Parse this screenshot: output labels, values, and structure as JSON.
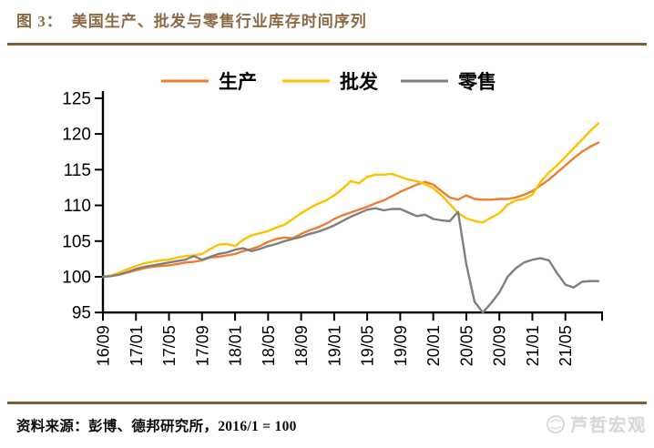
{
  "header": {
    "figure_label": "图 3：",
    "title": "美国生产、批发与零售行业库存时间序列"
  },
  "footer": {
    "source": "资料来源：彭博、德邦研究所，2016/1 = 100",
    "watermark_text": "芦哲宏观"
  },
  "colors": {
    "title_brown": "#8A6A44",
    "rule_brown": "#7E5F38",
    "axis_black": "#000000",
    "production_orange": "#ED7D31",
    "wholesale_yellow": "#FFC000",
    "retail_gray": "#7F7F7F"
  },
  "chart_data": {
    "type": "line",
    "title": "美国生产、批发与零售行业库存时间序列",
    "xlabel": "",
    "ylabel": "",
    "index_base": "2016/1 = 100",
    "legend_position": "top",
    "grid": false,
    "ylim": [
      95,
      125
    ],
    "yticks": [
      95,
      100,
      105,
      110,
      115,
      120,
      125
    ],
    "n_points": 61,
    "x_start": "16/09",
    "x_end": "21/09",
    "x_tick_months": [
      0,
      4,
      8,
      12,
      16,
      20,
      24,
      28,
      32,
      36,
      40,
      44,
      48,
      52,
      56
    ],
    "x_tick_labels": [
      "16/09",
      "17/01",
      "17/05",
      "17/09",
      "18/01",
      "18/05",
      "18/09",
      "19/01",
      "19/05",
      "19/09",
      "20/01",
      "20/05",
      "20/09",
      "21/01",
      "21/05"
    ],
    "series": [
      {
        "name": "生产",
        "color": "#ED7D31",
        "values": [
          100.0,
          100.1,
          100.3,
          100.6,
          100.9,
          101.2,
          101.4,
          101.5,
          101.6,
          101.8,
          102.0,
          102.1,
          102.3,
          102.7,
          102.8,
          103.0,
          103.2,
          103.6,
          103.9,
          104.3,
          104.9,
          105.3,
          105.5,
          105.4,
          106.0,
          106.5,
          106.9,
          107.4,
          108.1,
          108.6,
          109.0,
          109.4,
          109.8,
          110.3,
          110.7,
          111.3,
          111.9,
          112.4,
          112.9,
          113.3,
          112.9,
          112.0,
          111.1,
          110.8,
          111.4,
          110.9,
          110.8,
          110.8,
          110.9,
          110.9,
          111.1,
          111.5,
          112.0,
          112.8,
          113.6,
          114.6,
          115.6,
          116.6,
          117.5,
          118.2,
          118.8
        ]
      },
      {
        "name": "批发",
        "color": "#FFC000",
        "values": [
          100.0,
          100.2,
          100.6,
          101.1,
          101.5,
          101.9,
          102.1,
          102.3,
          102.4,
          102.7,
          102.9,
          103.0,
          103.2,
          103.9,
          104.5,
          104.6,
          104.3,
          105.2,
          105.8,
          106.1,
          106.4,
          106.9,
          107.3,
          108.1,
          108.9,
          109.6,
          110.2,
          110.7,
          111.4,
          112.3,
          113.4,
          113.1,
          114.0,
          114.3,
          114.3,
          114.4,
          114.0,
          113.6,
          113.4,
          113.0,
          112.4,
          111.4,
          110.2,
          108.9,
          108.2,
          107.8,
          107.6,
          108.3,
          108.9,
          110.1,
          110.7,
          110.9,
          111.5,
          113.3,
          114.6,
          115.6,
          116.8,
          118.0,
          119.2,
          120.4,
          121.5
        ]
      },
      {
        "name": "零售",
        "color": "#7F7F7F",
        "values": [
          100.0,
          100.1,
          100.3,
          100.7,
          101.1,
          101.4,
          101.6,
          101.8,
          102.0,
          102.2,
          102.4,
          102.9,
          102.4,
          102.8,
          103.2,
          103.4,
          103.8,
          104.0,
          103.6,
          103.9,
          104.3,
          104.6,
          105.0,
          105.3,
          105.6,
          106.0,
          106.3,
          106.7,
          107.2,
          107.8,
          108.4,
          108.9,
          109.4,
          109.6,
          109.3,
          109.5,
          109.5,
          109.0,
          108.5,
          108.7,
          108.1,
          107.9,
          107.8,
          109.1,
          101.8,
          96.5,
          95.0,
          96.3,
          97.8,
          100.0,
          101.2,
          102.0,
          102.4,
          102.6,
          102.3,
          100.5,
          98.9,
          98.5,
          99.3,
          99.4,
          99.4
        ]
      }
    ]
  }
}
